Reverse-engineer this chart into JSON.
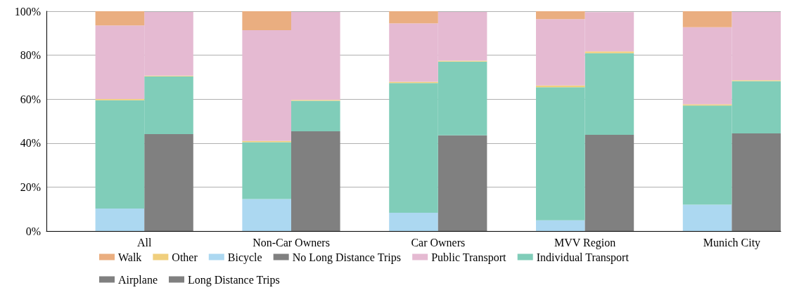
{
  "chart_data": {
    "type": "bar",
    "stacked": true,
    "categories": [
      null,
      "All",
      null,
      null,
      "Non-Car Owners",
      null,
      null,
      "Car Owners",
      null,
      null,
      "MVV Region",
      null,
      null,
      "Munich City",
      null
    ],
    "series": [
      {
        "name": "Bicycle",
        "color": "#acd8f1",
        "values": [
          null,
          10.2,
          null,
          null,
          14.5,
          null,
          null,
          8.3,
          null,
          null,
          4.9,
          null,
          null,
          12.0,
          null
        ]
      },
      {
        "name": "Airplane",
        "color": "#808080",
        "values": [
          null,
          null,
          44.1,
          null,
          null,
          45.4,
          null,
          null,
          43.5,
          null,
          null,
          43.8,
          null,
          null,
          44.4
        ]
      },
      {
        "name": "Individual Transport",
        "color": "#80cdb9",
        "values": [
          null,
          49.3,
          26.3,
          null,
          25.9,
          13.9,
          null,
          59.0,
          33.6,
          null,
          60.5,
          37.1,
          null,
          45.1,
          23.8
        ]
      },
      {
        "name": "Other",
        "color": "#f0cf7d",
        "values": [
          null,
          0.6,
          0.3,
          null,
          0.6,
          0.4,
          null,
          0.6,
          0.4,
          null,
          0.8,
          0.8,
          null,
          0.6,
          0.4
        ]
      },
      {
        "name": "Public Transport",
        "color": "#e5bad2",
        "values": [
          null,
          33.4,
          29.0,
          null,
          50.4,
          40.0,
          null,
          26.6,
          22.2,
          null,
          30.2,
          17.9,
          null,
          35.0,
          31.1
        ]
      },
      {
        "name": "Walk",
        "color": "#eaae80",
        "values": [
          null,
          6.5,
          null,
          null,
          8.6,
          null,
          null,
          5.5,
          null,
          null,
          3.6,
          null,
          null,
          7.3,
          null
        ]
      },
      {
        "name": "No Long Distance Trips",
        "color": "#808080",
        "values": [
          null,
          null,
          null,
          null,
          null,
          null,
          null,
          null,
          null,
          null,
          null,
          null,
          null,
          null,
          null
        ]
      },
      {
        "name": "Long Distance Trips",
        "color": "#808080",
        "values": [
          null,
          null,
          null,
          null,
          null,
          null,
          null,
          null,
          null,
          null,
          null,
          null,
          null,
          null,
          null
        ]
      }
    ],
    "ylim": [
      0,
      100
    ],
    "yticks": [
      {
        "value": 0,
        "label": "0%"
      },
      {
        "value": 20,
        "label": "20%"
      },
      {
        "value": 40,
        "label": "40%"
      },
      {
        "value": 60,
        "label": "60%"
      },
      {
        "value": 80,
        "label": "80%"
      },
      {
        "value": 100,
        "label": "100%"
      }
    ],
    "grid": "y",
    "legend": "bottom"
  }
}
